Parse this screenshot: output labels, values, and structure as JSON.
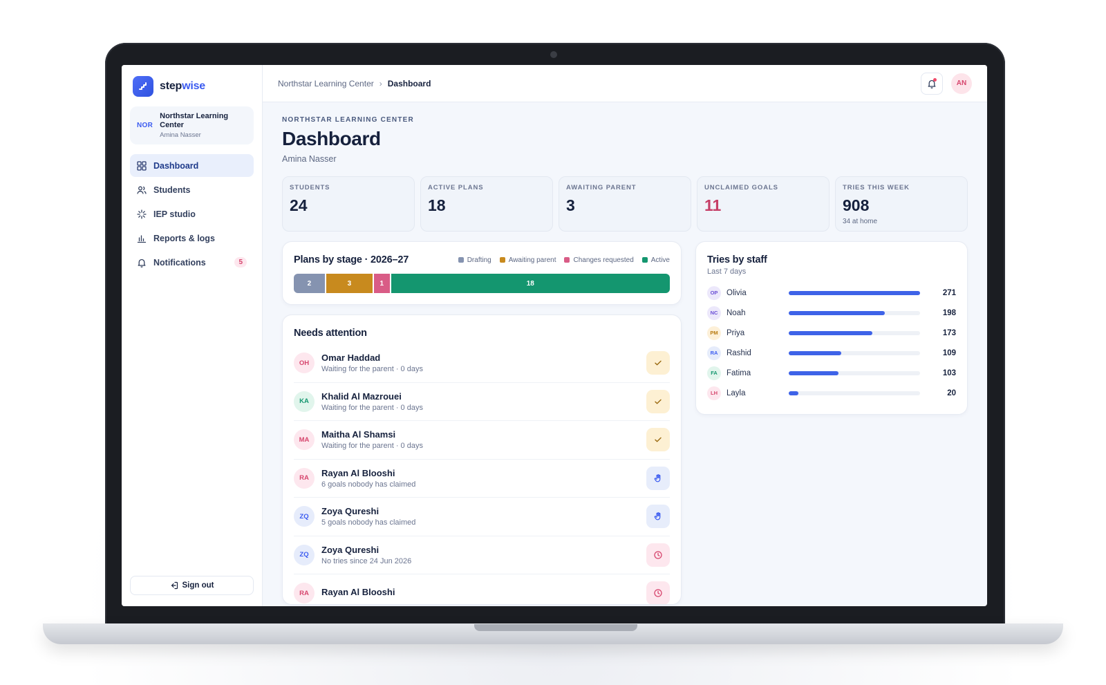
{
  "app": {
    "brand_prefix": "step",
    "brand_suffix": "wise"
  },
  "org": {
    "badge": "NOR",
    "name": "Northstar Learning Center",
    "user": "Amina Nasser"
  },
  "nav": [
    {
      "label": "Dashboard",
      "icon": "dashboard-icon",
      "active": true
    },
    {
      "label": "Students",
      "icon": "users-icon"
    },
    {
      "label": "IEP studio",
      "icon": "sparkle-icon"
    },
    {
      "label": "Reports & logs",
      "icon": "bar-chart-icon"
    },
    {
      "label": "Notifications",
      "icon": "bell-icon",
      "badge": "5"
    }
  ],
  "signout": "Sign out",
  "breadcrumb": {
    "parent": "Northstar Learning Center",
    "sep": "›",
    "current": "Dashboard"
  },
  "top_avatar": "AN",
  "header": {
    "eyebrow": "NORTHSTAR LEARNING CENTER",
    "title": "Dashboard",
    "subtitle": "Amina Nasser"
  },
  "stats": [
    {
      "label": "STUDENTS",
      "value": "24"
    },
    {
      "label": "ACTIVE PLANS",
      "value": "18"
    },
    {
      "label": "AWAITING PARENT",
      "value": "3"
    },
    {
      "label": "UNCLAIMED GOALS",
      "value": "11",
      "alert": true
    },
    {
      "label": "TRIES THIS WEEK",
      "value": "908",
      "note": "34 at home"
    }
  ],
  "plans": {
    "title": "Plans by stage · 2026–27",
    "legend": [
      {
        "label": "Drafting",
        "color": "#8593b0"
      },
      {
        "label": "Awaiting parent",
        "color": "#c88a1e"
      },
      {
        "label": "Changes requested",
        "color": "#d95c86"
      },
      {
        "label": "Active",
        "color": "#14966f"
      }
    ]
  },
  "chart_data": {
    "type": "bar",
    "title": "Plans by stage · 2026–27",
    "categories": [
      "Drafting",
      "Awaiting parent",
      "Changes requested",
      "Active"
    ],
    "values": [
      2,
      3,
      1,
      18
    ],
    "stacked": true,
    "colors": [
      "#8593b0",
      "#c88a1e",
      "#d95c86",
      "#14966f"
    ],
    "legend": "top-right"
  },
  "attention": {
    "title": "Needs attention",
    "items": [
      {
        "initials": "OH",
        "name": "Omar Haddad",
        "sub": "Waiting for the parent · 0 days",
        "kind": "check",
        "tone": "pink"
      },
      {
        "initials": "KA",
        "name": "Khalid Al Mazrouei",
        "sub": "Waiting for the parent · 0 days",
        "kind": "check",
        "tone": "green"
      },
      {
        "initials": "MA",
        "name": "Maitha Al Shamsi",
        "sub": "Waiting for the parent · 0 days",
        "kind": "check",
        "tone": "pink"
      },
      {
        "initials": "RA",
        "name": "Rayan Al Blooshi",
        "sub": "6 goals nobody has claimed",
        "kind": "hand",
        "tone": "pink"
      },
      {
        "initials": "ZQ",
        "name": "Zoya Qureshi",
        "sub": "5 goals nobody has claimed",
        "kind": "hand",
        "tone": "blue"
      },
      {
        "initials": "ZQ",
        "name": "Zoya Qureshi",
        "sub": "No tries since 24 Jun 2026",
        "kind": "clock",
        "tone": "blue"
      },
      {
        "initials": "RA",
        "name": "Rayan Al Blooshi",
        "sub": "",
        "kind": "clock",
        "tone": "pink"
      }
    ]
  },
  "staff": {
    "title": "Tries by staff",
    "subtitle": "Last 7 days",
    "max": 271,
    "rows": [
      {
        "initials": "OP",
        "name": "Olivia",
        "value": 271,
        "tone": "purple"
      },
      {
        "initials": "NC",
        "name": "Noah",
        "value": 198,
        "tone": "purple"
      },
      {
        "initials": "PM",
        "name": "Priya",
        "value": 173,
        "tone": "amber"
      },
      {
        "initials": "RA",
        "name": "Rashid",
        "value": 109,
        "tone": "blue"
      },
      {
        "initials": "FA",
        "name": "Fatima",
        "value": 103,
        "tone": "green"
      },
      {
        "initials": "LH",
        "name": "Layla",
        "value": 20,
        "tone": "pink"
      }
    ]
  }
}
